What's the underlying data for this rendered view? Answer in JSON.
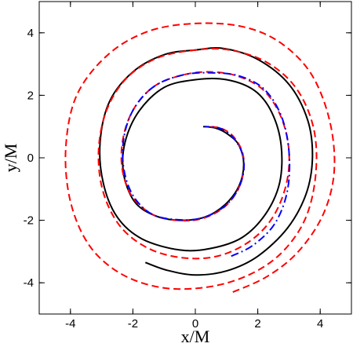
{
  "chart_data": {
    "type": "line",
    "xlabel": "x/M",
    "ylabel": "y/M",
    "xlim": [
      -5.0,
      5.0
    ],
    "ylim": [
      -5.0,
      5.0
    ],
    "xticks": [
      -4,
      -2,
      0,
      2,
      4
    ],
    "yticks": [
      -4,
      -2,
      0,
      2,
      4
    ],
    "grid": false,
    "legend": "none",
    "series": [
      {
        "style": "solid",
        "color": "#000000",
        "points": [
          [
            -1.6,
            -3.35
          ],
          [
            -0.9,
            -3.6
          ],
          [
            0.0,
            -3.75
          ],
          [
            1.0,
            -3.62
          ],
          [
            2.0,
            -3.15
          ],
          [
            2.95,
            -2.25
          ],
          [
            3.55,
            -1.15
          ],
          [
            3.75,
            0.0
          ],
          [
            3.6,
            1.2
          ],
          [
            3.0,
            2.35
          ],
          [
            2.0,
            3.15
          ],
          [
            0.9,
            3.5
          ],
          [
            0.0,
            3.45
          ],
          [
            -1.0,
            3.3
          ],
          [
            -2.0,
            2.75
          ],
          [
            -2.75,
            1.8
          ],
          [
            -3.05,
            0.5
          ],
          [
            -2.95,
            -0.8
          ],
          [
            -2.5,
            -1.9
          ],
          [
            -1.7,
            -2.6
          ],
          [
            -0.5,
            -2.95
          ],
          [
            0.5,
            -2.9
          ],
          [
            1.5,
            -2.55
          ],
          [
            2.25,
            -1.8
          ],
          [
            2.7,
            -0.8
          ],
          [
            2.75,
            0.4
          ],
          [
            2.45,
            1.45
          ],
          [
            1.9,
            2.15
          ],
          [
            1.0,
            2.5
          ],
          [
            0.0,
            2.5
          ],
          [
            -1.0,
            2.25
          ],
          [
            -1.8,
            1.5
          ],
          [
            -2.25,
            0.5
          ],
          [
            -2.3,
            -0.5
          ],
          [
            -1.95,
            -1.4
          ],
          [
            -1.3,
            -1.85
          ],
          [
            -0.5,
            -2.0
          ],
          [
            0.3,
            -1.9
          ],
          [
            0.95,
            -1.5
          ],
          [
            1.4,
            -0.9
          ],
          [
            1.55,
            -0.2
          ],
          [
            1.4,
            0.4
          ],
          [
            1.05,
            0.75
          ],
          [
            0.65,
            0.95
          ],
          [
            0.25,
            1.0
          ]
        ]
      },
      {
        "style": "dashed",
        "color": "#ff0000",
        "points": [
          [
            1.2,
            -4.3
          ],
          [
            2.3,
            -3.8
          ],
          [
            3.3,
            -3.0
          ],
          [
            4.1,
            -1.8
          ],
          [
            4.45,
            -0.4
          ],
          [
            4.3,
            1.2
          ],
          [
            3.7,
            2.7
          ],
          [
            2.7,
            3.7
          ],
          [
            1.5,
            4.2
          ],
          [
            0.0,
            4.3
          ],
          [
            -1.5,
            4.05
          ],
          [
            -2.8,
            3.3
          ],
          [
            -3.8,
            2.0
          ],
          [
            -4.15,
            0.3
          ],
          [
            -4.0,
            -1.4
          ],
          [
            -3.4,
            -2.8
          ],
          [
            -2.4,
            -3.7
          ],
          [
            -1.1,
            -4.15
          ],
          [
            0.3,
            -4.15
          ],
          [
            1.6,
            -3.8
          ],
          [
            2.7,
            -3.1
          ],
          [
            3.5,
            -2.0
          ],
          [
            3.85,
            -0.6
          ],
          [
            3.8,
            0.9
          ],
          [
            3.25,
            2.2
          ],
          [
            2.3,
            3.05
          ],
          [
            1.1,
            3.45
          ],
          [
            0.0,
            3.45
          ],
          [
            -1.2,
            3.2
          ],
          [
            -2.2,
            2.55
          ],
          [
            -2.85,
            1.5
          ],
          [
            -3.1,
            0.2
          ],
          [
            -2.95,
            -1.1
          ],
          [
            -2.4,
            -2.2
          ],
          [
            -1.5,
            -2.9
          ],
          [
            -0.4,
            -3.2
          ],
          [
            0.7,
            -3.15
          ],
          [
            1.7,
            -2.7
          ],
          [
            2.45,
            -1.95
          ],
          [
            2.9,
            -0.9
          ],
          [
            3.0,
            0.2
          ],
          [
            2.75,
            1.3
          ],
          [
            2.2,
            2.15
          ],
          [
            1.4,
            2.6
          ],
          [
            0.5,
            2.75
          ],
          [
            -0.4,
            2.65
          ],
          [
            -1.3,
            2.3
          ],
          [
            -1.95,
            1.6
          ],
          [
            -2.3,
            0.7
          ],
          [
            -2.35,
            -0.3
          ],
          [
            -2.05,
            -1.2
          ],
          [
            -1.4,
            -1.8
          ],
          [
            -0.6,
            -2.0
          ],
          [
            0.2,
            -1.95
          ],
          [
            0.9,
            -1.6
          ],
          [
            1.35,
            -1.05
          ],
          [
            1.55,
            -0.4
          ],
          [
            1.5,
            0.2
          ],
          [
            1.2,
            0.7
          ],
          [
            0.8,
            0.95
          ],
          [
            0.3,
            1.0
          ]
        ]
      },
      {
        "style": "dash-dot",
        "color": "#0000ff",
        "points": [
          [
            1.15,
            -3.15
          ],
          [
            1.85,
            -2.8
          ],
          [
            2.55,
            -2.1
          ],
          [
            2.95,
            -1.05
          ],
          [
            3.0,
            0.2
          ],
          [
            2.75,
            1.35
          ],
          [
            2.2,
            2.2
          ],
          [
            1.4,
            2.62
          ],
          [
            0.5,
            2.72
          ],
          [
            -0.4,
            2.65
          ],
          [
            -1.3,
            2.3
          ],
          [
            -1.95,
            1.6
          ],
          [
            -2.28,
            0.7
          ],
          [
            -2.3,
            -0.3
          ],
          [
            -2.0,
            -1.2
          ],
          [
            -1.4,
            -1.8
          ],
          [
            -0.6,
            -1.98
          ],
          [
            0.2,
            -1.93
          ],
          [
            0.9,
            -1.58
          ],
          [
            1.35,
            -1.05
          ],
          [
            1.55,
            -0.4
          ],
          [
            1.48,
            0.2
          ],
          [
            1.18,
            0.68
          ],
          [
            0.78,
            0.95
          ],
          [
            0.3,
            1.0
          ]
        ]
      }
    ]
  }
}
